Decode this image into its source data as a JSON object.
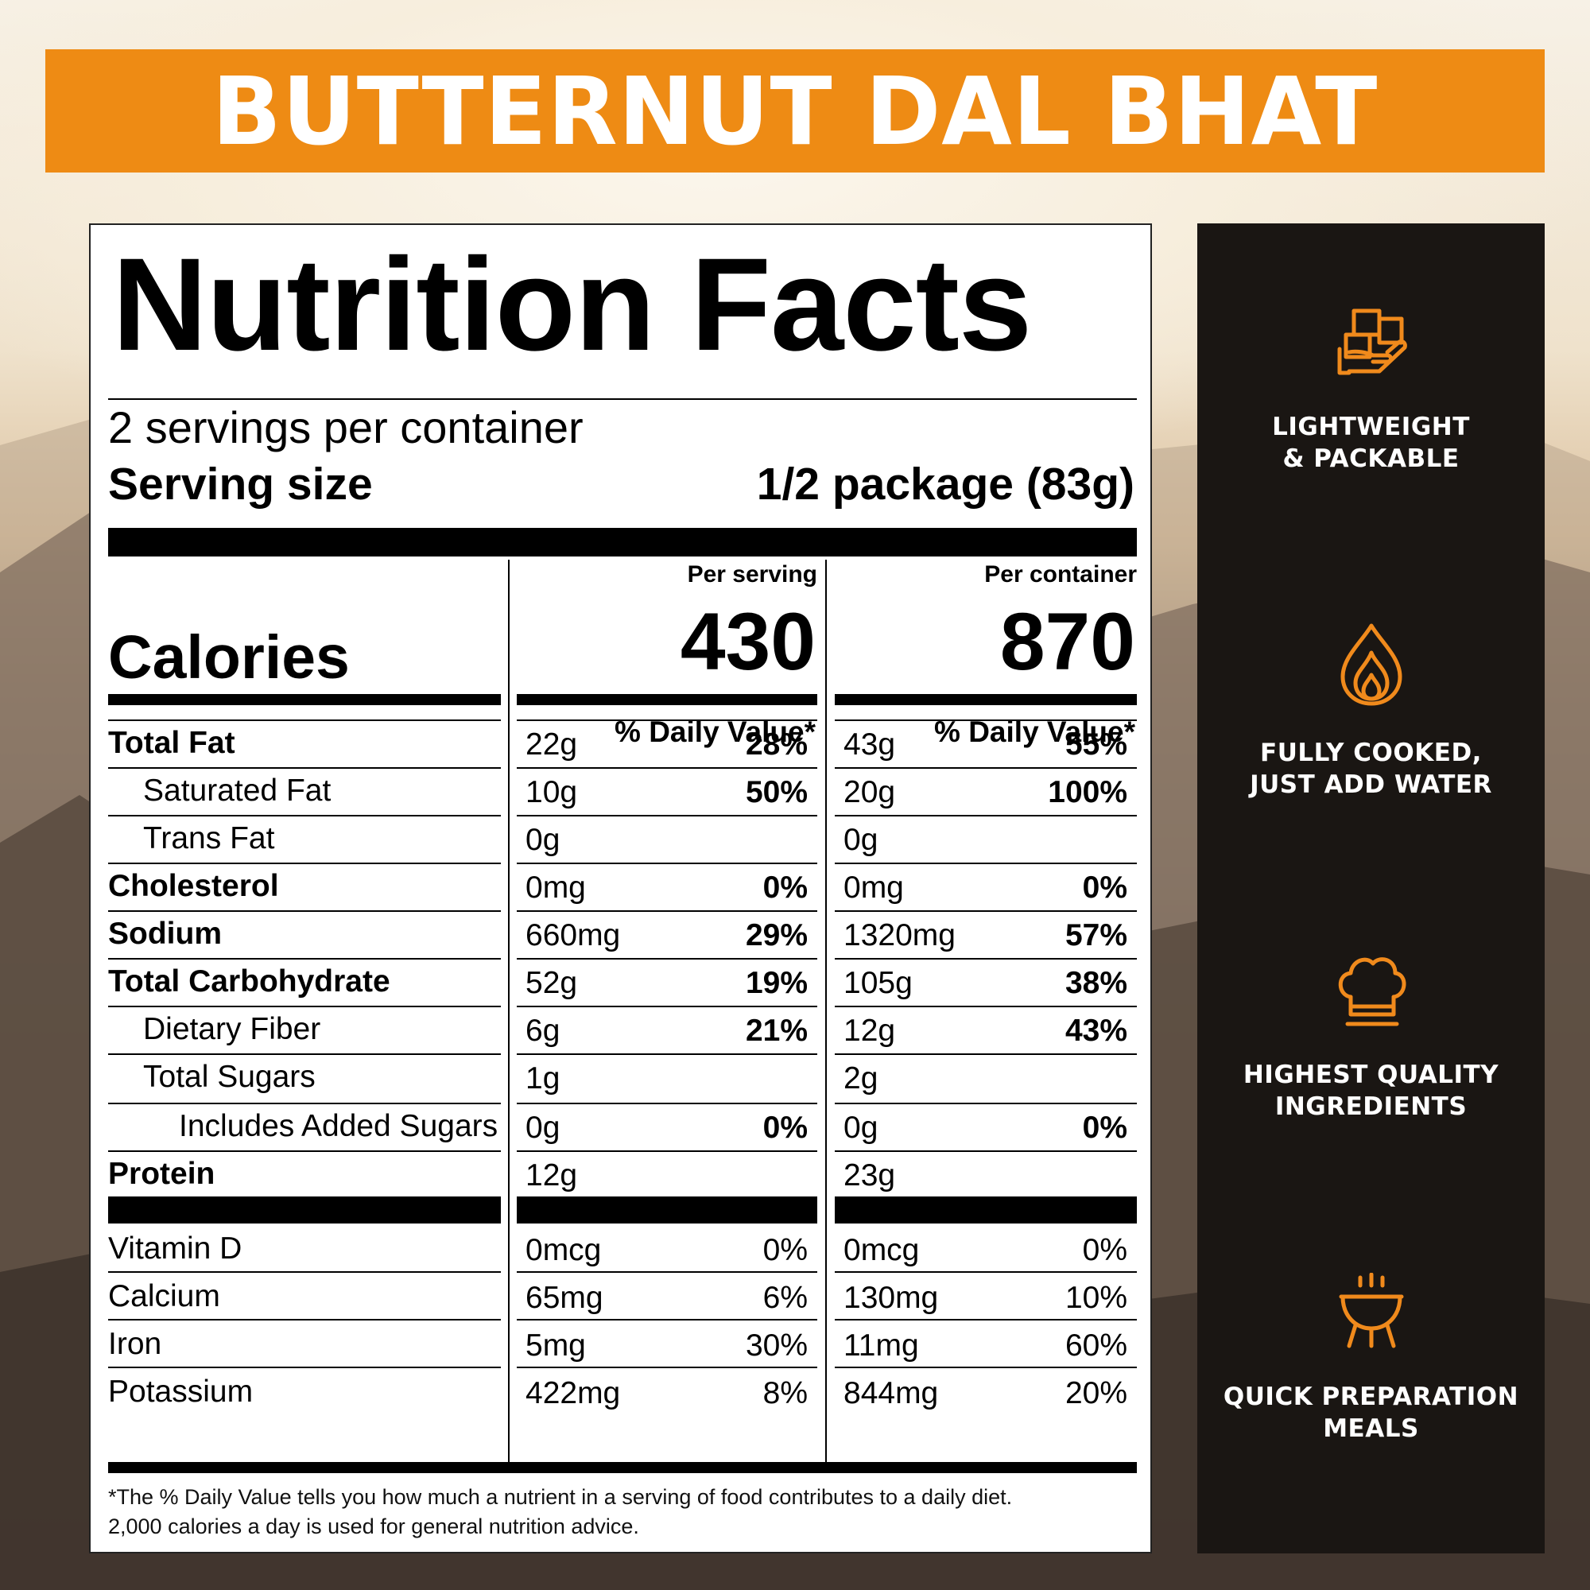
{
  "banner": {
    "title": "BUTTERNUT DAL BHAT"
  },
  "label": {
    "title": "Nutrition Facts",
    "servings_per_container": "2 servings per container",
    "serving_size_label": "Serving size",
    "serving_size_value": "1/2 package (83g)",
    "per_serving_label": "Per serving",
    "per_container_label": "Per container",
    "calories_label": "Calories",
    "calories_per_serving": "430",
    "calories_per_container": "870",
    "daily_value_head": "% Daily Value*",
    "rows": [
      {
        "label": "Total Fat",
        "bold": true,
        "indent": 0,
        "s_amt": "22g",
        "s_dv": "28%",
        "c_amt": "43g",
        "c_dv": "55%"
      },
      {
        "label": "Saturated Fat",
        "bold": false,
        "indent": 1,
        "s_amt": "10g",
        "s_dv": "50%",
        "c_amt": "20g",
        "c_dv": "100%"
      },
      {
        "label": "Trans Fat",
        "bold": false,
        "indent": 1,
        "s_amt": "0g",
        "s_dv": "",
        "c_amt": "0g",
        "c_dv": ""
      },
      {
        "label": "Cholesterol",
        "bold": true,
        "indent": 0,
        "s_amt": "0mg",
        "s_dv": "0%",
        "c_amt": "0mg",
        "c_dv": "0%"
      },
      {
        "label": "Sodium",
        "bold": true,
        "indent": 0,
        "s_amt": "660mg",
        "s_dv": "29%",
        "c_amt": "1320mg",
        "c_dv": "57%"
      },
      {
        "label": "Total Carbohydrate",
        "bold": true,
        "indent": 0,
        "s_amt": "52g",
        "s_dv": "19%",
        "c_amt": "105g",
        "c_dv": "38%"
      },
      {
        "label": "Dietary Fiber",
        "bold": false,
        "indent": 1,
        "s_amt": "6g",
        "s_dv": "21%",
        "c_amt": "12g",
        "c_dv": "43%"
      },
      {
        "label": "Total Sugars",
        "bold": false,
        "indent": 1,
        "s_amt": "1g",
        "s_dv": "",
        "c_amt": "2g",
        "c_dv": ""
      },
      {
        "label": "Includes Added Sugars",
        "bold": false,
        "indent": 2,
        "s_amt": "0g",
        "s_dv": "0%",
        "c_amt": "0g",
        "c_dv": "0%"
      },
      {
        "label": "Protein",
        "bold": true,
        "indent": 0,
        "s_amt": "12g",
        "s_dv": "",
        "c_amt": "23g",
        "c_dv": ""
      }
    ],
    "vitamins": [
      {
        "label": "Vitamin D",
        "s_amt": "0mcg",
        "s_dv": "0%",
        "c_amt": "0mcg",
        "c_dv": "0%"
      },
      {
        "label": "Calcium",
        "s_amt": "65mg",
        "s_dv": "6%",
        "c_amt": "130mg",
        "c_dv": "10%"
      },
      {
        "label": "Iron",
        "s_amt": "5mg",
        "s_dv": "30%",
        "c_amt": "11mg",
        "c_dv": "60%"
      },
      {
        "label": "Potassium",
        "s_amt": "422mg",
        "s_dv": "8%",
        "c_amt": "844mg",
        "c_dv": "20%"
      }
    ],
    "footnote_line1": "*The % Daily Value tells you how much a nutrient in a serving of food contributes to a daily diet.",
    "footnote_line2": "2,000 calories a day is used for general nutrition advice."
  },
  "features": [
    {
      "icon": "package-hand-icon",
      "line1": "LIGHTWEIGHT",
      "line2": "& PACKABLE"
    },
    {
      "icon": "water-flame-icon",
      "line1": "FULLY COOKED,",
      "line2": "JUST ADD WATER"
    },
    {
      "icon": "chef-hat-icon",
      "line1": "HIGHEST QUALITY",
      "line2": "INGREDIENTS"
    },
    {
      "icon": "cooking-pot-icon",
      "line1": "QUICK PREPARATION",
      "line2": "MEALS"
    }
  ],
  "colors": {
    "accent": "#ee8b14",
    "side_panel": "#1a1613",
    "icon_orange": "#f08a1c"
  }
}
